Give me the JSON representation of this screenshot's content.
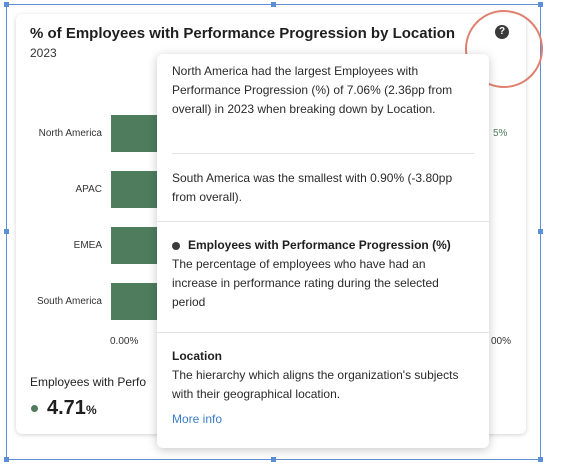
{
  "card": {
    "title": "% of Employees with Performance Progression by Location",
    "subtitle": "2023",
    "help_icon_glyph": "?"
  },
  "chart_data": {
    "type": "bar",
    "orientation": "horizontal",
    "categories": [
      "North America",
      "APAC",
      "EMEA",
      "South America"
    ],
    "tick_labels": [
      "0.00%",
      "00%"
    ],
    "value_fragment": "5%",
    "bar_color": "#4f7c5d"
  },
  "summary": {
    "label": "Employees with Perfo",
    "value": "4.71",
    "unit": "%"
  },
  "tooltip": {
    "insight_1": "North America had the largest Employees with Performance Progression (%) of 7.06% (2.36pp from overall) in 2023 when breaking down by Location.",
    "insight_2": "South America was the smallest with 0.90% (-3.80pp from overall).",
    "metric_title": "Employees with Performance Progression (%)",
    "metric_desc": "The percentage of employees who have had an increase in performance rating during the selected period",
    "dimension_title": "Location",
    "dimension_desc": "The hierarchy which aligns the organization's subjects with their geographical location.",
    "more_info": "More info"
  },
  "colors": {
    "accent": "#4f7c5d",
    "link": "#3a7dc9",
    "highlight": "#e07f6e",
    "selection": "#5b8fd6"
  }
}
